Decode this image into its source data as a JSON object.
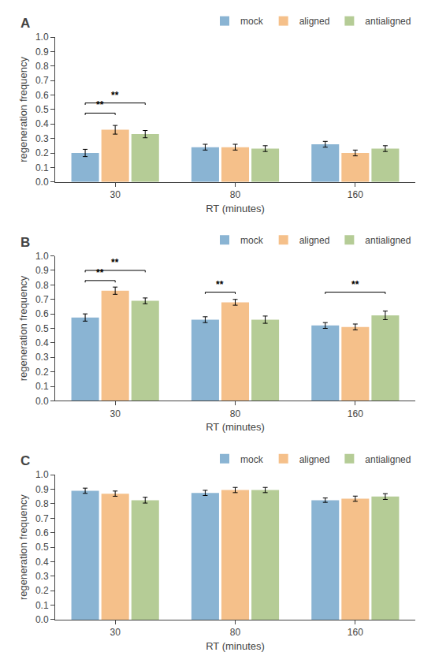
{
  "chart_data": [
    {
      "type": "bar",
      "title": "A",
      "categories": [
        "30",
        "80",
        "160"
      ],
      "series": [
        {
          "name": "mock",
          "color": "#8ab4d3",
          "values": [
            0.2,
            0.24,
            0.26
          ],
          "errors": [
            0.025,
            0.02,
            0.02
          ]
        },
        {
          "name": "aligned",
          "color": "#f5c08a",
          "values": [
            0.36,
            0.24,
            0.2
          ],
          "errors": [
            0.03,
            0.02,
            0.02
          ]
        },
        {
          "name": "antialigned",
          "color": "#b5cc96",
          "values": [
            0.33,
            0.23,
            0.23
          ],
          "errors": [
            0.025,
            0.02,
            0.02
          ]
        }
      ],
      "x_label": "RT (minutes)",
      "y_label": "regeneration frequency",
      "ylim": [
        0,
        1
      ],
      "yticks": [
        {
          "value": 0,
          "label": "0.0"
        },
        0.1,
        0.2,
        0.3,
        0.4,
        0.5,
        0.6,
        0.7,
        0.8,
        0.9,
        {
          "value": 1,
          "label": "1.0"
        }
      ],
      "grid": false,
      "legend": "upper right",
      "annotations": [
        {
          "text": "**",
          "x": "30",
          "between": [
            "mock",
            "aligned"
          ],
          "y": 0.475
        },
        {
          "text": "**",
          "x": "30",
          "between": [
            "mock",
            "antialigned"
          ],
          "y": 0.545
        }
      ]
    },
    {
      "type": "bar",
      "title": "B",
      "categories": [
        "30",
        "80",
        "160"
      ],
      "series": [
        {
          "name": "mock",
          "color": "#8ab4d3",
          "values": [
            0.575,
            0.56,
            0.52
          ],
          "errors": [
            0.025,
            0.02,
            0.02
          ]
        },
        {
          "name": "aligned",
          "color": "#f5c08a",
          "values": [
            0.76,
            0.68,
            0.51
          ],
          "errors": [
            0.025,
            0.02,
            0.02
          ]
        },
        {
          "name": "antialigned",
          "color": "#b5cc96",
          "values": [
            0.69,
            0.56,
            0.59
          ],
          "errors": [
            0.02,
            0.025,
            0.03
          ]
        }
      ],
      "x_label": "RT (minutes)",
      "y_label": "regeneration frequency",
      "ylim": [
        0,
        1
      ],
      "yticks": [
        {
          "value": 0,
          "label": "0.0"
        },
        0.1,
        0.2,
        0.3,
        0.4,
        0.5,
        0.6,
        0.7,
        0.8,
        0.9,
        {
          "value": 1,
          "label": "1.0"
        }
      ],
      "grid": false,
      "legend": "upper right",
      "annotations": [
        {
          "text": "**",
          "x": "30",
          "between": [
            "mock",
            "aligned"
          ],
          "y": 0.83
        },
        {
          "text": "**",
          "x": "30",
          "between": [
            "mock",
            "antialigned"
          ],
          "y": 0.9
        },
        {
          "text": "**",
          "x": "80",
          "between": [
            "mock",
            "aligned"
          ],
          "y": 0.75
        },
        {
          "text": "**",
          "x": "160",
          "between": [
            "mock",
            "antialigned"
          ],
          "y": 0.75
        }
      ]
    },
    {
      "type": "bar",
      "title": "C",
      "categories": [
        "30",
        "80",
        "160"
      ],
      "series": [
        {
          "name": "mock",
          "color": "#8ab4d3",
          "values": [
            0.89,
            0.875,
            0.825
          ],
          "errors": [
            0.018,
            0.018,
            0.015
          ]
        },
        {
          "name": "aligned",
          "color": "#f5c08a",
          "values": [
            0.87,
            0.895,
            0.835
          ],
          "errors": [
            0.018,
            0.018,
            0.018
          ]
        },
        {
          "name": "antialigned",
          "color": "#b5cc96",
          "values": [
            0.825,
            0.895,
            0.85
          ],
          "errors": [
            0.02,
            0.018,
            0.02
          ]
        }
      ],
      "x_label": "RT (minutes)",
      "y_label": "regeneration frequency",
      "ylim": [
        0,
        1
      ],
      "yticks": [
        {
          "value": 0,
          "label": "0.0"
        },
        0.1,
        0.2,
        0.3,
        0.4,
        0.5,
        0.6,
        0.7,
        0.8,
        0.9,
        {
          "value": 1,
          "label": "1.0"
        }
      ],
      "grid": false,
      "legend": "upper right"
    }
  ]
}
